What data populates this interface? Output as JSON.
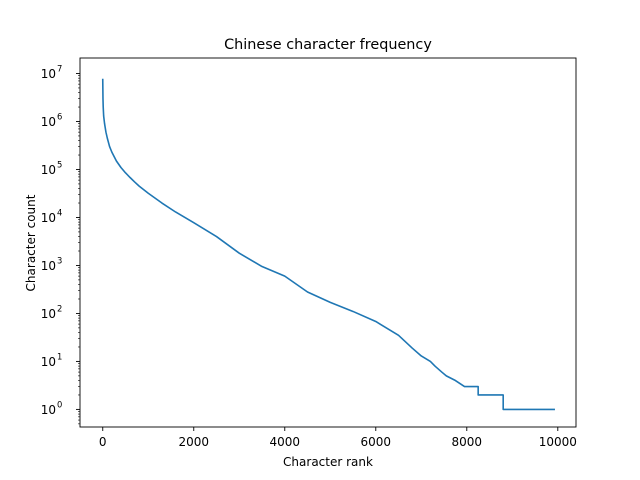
{
  "chart_data": {
    "type": "line",
    "title": "Chinese character frequency",
    "xlabel": "Character rank",
    "ylabel": "Character count",
    "xlim": [
      -500,
      10400
    ],
    "ylim": [
      0.43,
      10000000
    ],
    "yscale": "log",
    "grid": false,
    "series_color": "#1f77b4",
    "x_ticks": [
      {
        "value": 0,
        "label": "0"
      },
      {
        "value": 2000,
        "label": "2000"
      },
      {
        "value": 4000,
        "label": "4000"
      },
      {
        "value": 6000,
        "label": "6000"
      },
      {
        "value": 8000,
        "label": "8000"
      },
      {
        "value": 10000,
        "label": "10000"
      }
    ],
    "y_ticks": [
      {
        "value": 1,
        "base": "10",
        "exp": "0"
      },
      {
        "value": 10,
        "base": "10",
        "exp": "1"
      },
      {
        "value": 100,
        "base": "10",
        "exp": "2"
      },
      {
        "value": 1000,
        "base": "10",
        "exp": "3"
      },
      {
        "value": 10000,
        "base": "10",
        "exp": "4"
      },
      {
        "value": 100000,
        "base": "10",
        "exp": "5"
      },
      {
        "value": 1000000,
        "base": "10",
        "exp": "6"
      },
      {
        "value": 10000000,
        "base": "10",
        "exp": "7"
      }
    ],
    "series": [
      {
        "x": [
          0,
          5,
          10,
          20,
          40,
          70,
          100,
          150,
          200,
          300,
          400,
          500,
          600,
          700,
          800,
          1000,
          1300,
          1600,
          2000,
          2500,
          3000,
          3500,
          4000,
          4500,
          5000,
          5500,
          6000,
          6500,
          6800,
          7000,
          7200,
          7300,
          7450,
          7550,
          7750,
          7950,
          8250,
          8250,
          8800,
          8800,
          9920
        ],
        "y": [
          7500000,
          3000000,
          2000000,
          1300000,
          900000,
          600000,
          450000,
          300000,
          230000,
          150000,
          110000,
          85000,
          68000,
          55000,
          45000,
          32000,
          20000,
          13000,
          7800,
          4000,
          1800,
          950,
          600,
          280,
          170,
          110,
          68,
          35,
          19,
          13,
          10,
          8,
          6,
          5,
          4,
          3,
          3,
          2,
          2,
          1,
          1
        ]
      }
    ]
  }
}
